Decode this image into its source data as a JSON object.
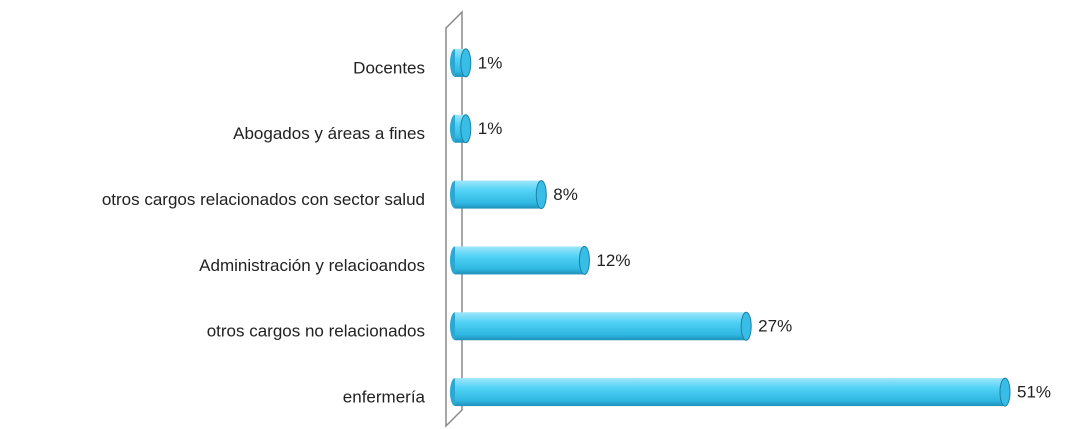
{
  "chart_data": {
    "type": "bar",
    "orientation": "horizontal",
    "categories": [
      "Docentes",
      "Abogados y áreas a fines",
      "otros cargos relacionados con sector salud",
      "Administración y relacioandos",
      "otros cargos no relacionados",
      "enfermería"
    ],
    "values": [
      1,
      1,
      8,
      12,
      27,
      51
    ],
    "value_labels": [
      "1%",
      "1%",
      "8%",
      "12%",
      "27%",
      "51%"
    ],
    "color": "#3cc6ee"
  }
}
